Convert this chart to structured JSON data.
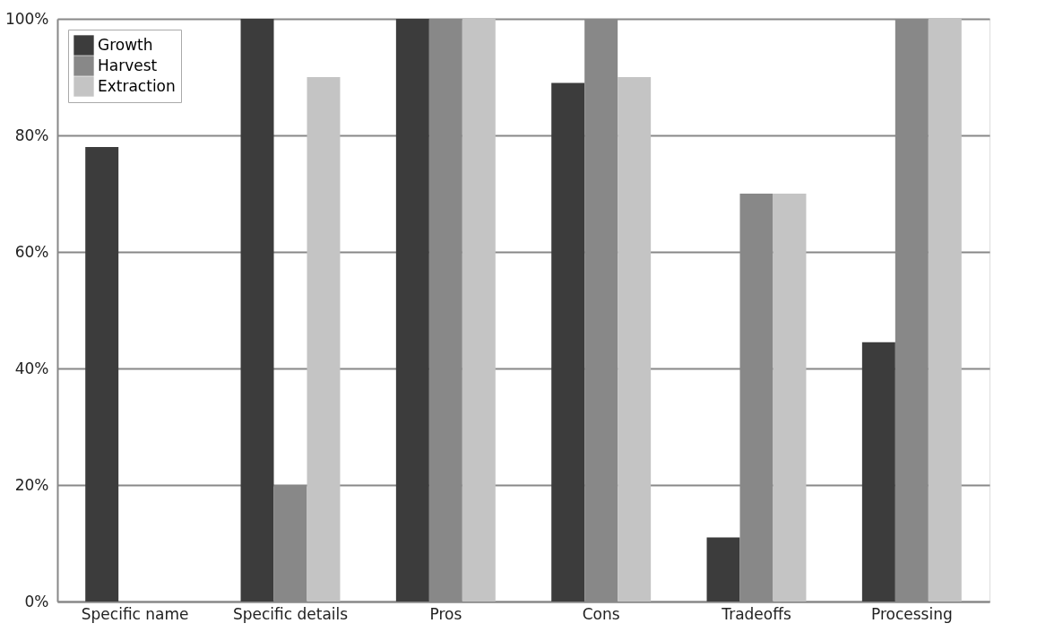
{
  "chart_data": {
    "type": "bar",
    "categories": [
      "Specific name",
      "Specific details",
      "Pros",
      "Cons",
      "Tradeoffs",
      "Processing"
    ],
    "series": [
      {
        "name": "Growth",
        "color": "#3c3c3c",
        "values": [
          78,
          100,
          100,
          89,
          11,
          44.5
        ]
      },
      {
        "name": "Harvest",
        "color": "#888888",
        "values": [
          0,
          20,
          100,
          100,
          70,
          100
        ]
      },
      {
        "name": "Extraction",
        "color": "#c4c4c4",
        "values": [
          0,
          90,
          100,
          90,
          70,
          100
        ]
      }
    ],
    "ylim": [
      0,
      100
    ],
    "yticks": [
      {
        "value": 0,
        "label": "0%"
      },
      {
        "value": 20,
        "label": "20%"
      },
      {
        "value": 40,
        "label": "40%"
      },
      {
        "value": 60,
        "label": "60%"
      },
      {
        "value": 80,
        "label": "80%"
      },
      {
        "value": 100,
        "label": "100%"
      }
    ],
    "grid": "y",
    "legend": "top left"
  }
}
